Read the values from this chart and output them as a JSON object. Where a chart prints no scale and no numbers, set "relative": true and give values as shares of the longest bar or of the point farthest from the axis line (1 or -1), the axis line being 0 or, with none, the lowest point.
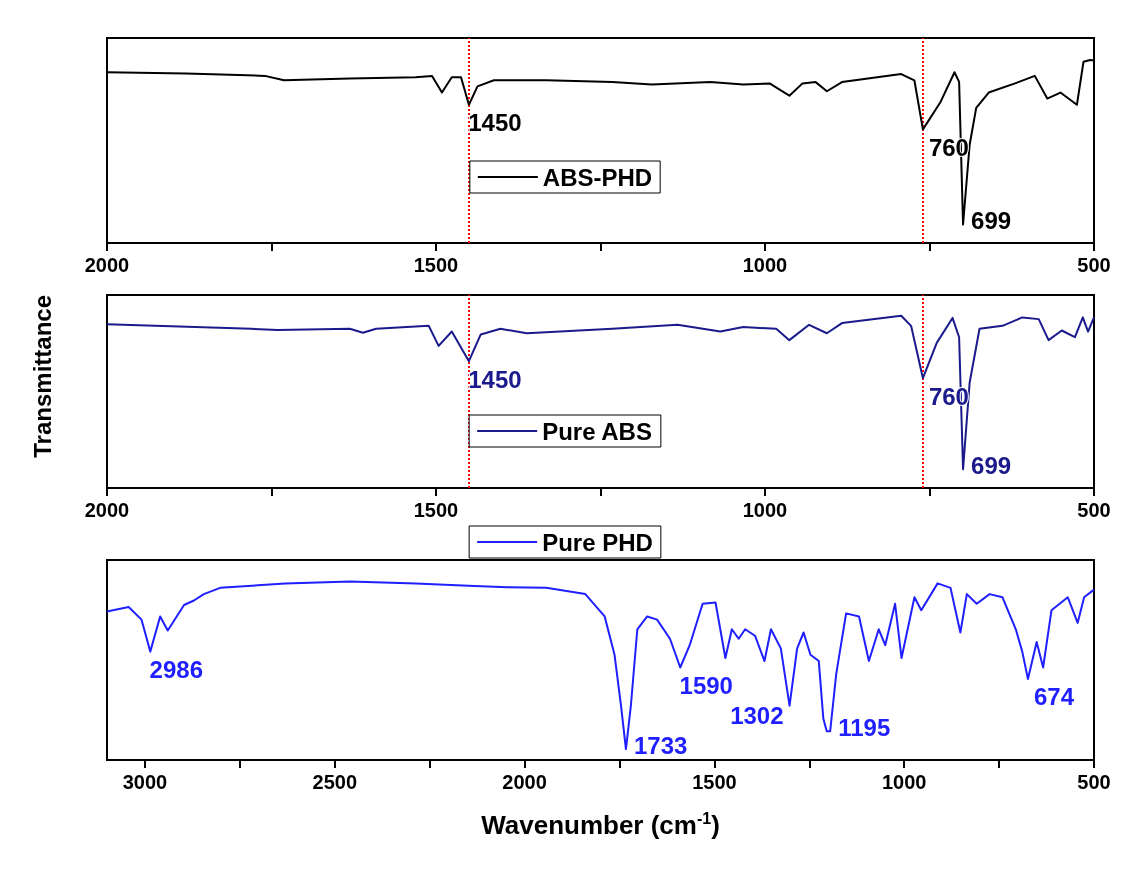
{
  "chart_data": [
    {
      "type": "line",
      "relative": true,
      "marker": "none",
      "line_style": "solid",
      "grid": false,
      "legend": "bottom",
      "tick_labels": "x",
      "xlim": [
        2000,
        500
      ],
      "xticks": [
        2000,
        {
          "value": 1750,
          "label": null
        },
        1500,
        {
          "value": 1250,
          "label": null
        },
        1000,
        {
          "value": 750,
          "label": null
        },
        500
      ],
      "x": [
        2000,
        1880,
        1760,
        1731,
        1631,
        1531,
        1506,
        1491,
        1476,
        1462,
        1450,
        1437,
        1412,
        1332,
        1232,
        1172,
        1083,
        1033,
        993,
        963,
        943,
        923,
        906,
        883,
        793,
        773,
        760,
        733,
        712,
        705,
        699,
        689,
        679,
        660,
        620,
        590,
        571,
        551,
        526,
        516,
        506,
        500
      ],
      "series": [
        {
          "name": "ABS-PHD",
          "color": "#000000",
          "values": [
            0.933,
            0.926,
            0.913,
            0.889,
            0.899,
            0.906,
            0.913,
            0.822,
            0.906,
            0.906,
            0.755,
            0.856,
            0.889,
            0.889,
            0.879,
            0.866,
            0.879,
            0.866,
            0.872,
            0.805,
            0.872,
            0.879,
            0.829,
            0.879,
            0.923,
            0.889,
            0.621,
            0.772,
            0.933,
            0.88,
            0.101,
            0.537,
            0.738,
            0.822,
            0.872,
            0.913,
            0.789,
            0.822,
            0.755,
            0.99,
            1.0,
            0.997
          ]
        }
      ],
      "ref_lines": [
        {
          "axis": "x",
          "value": 1450,
          "color": "#ff0000",
          "line_style": "dotted"
        },
        {
          "axis": "x",
          "value": 760,
          "color": "#ff0000",
          "line_style": "dotted"
        }
      ],
      "annotations": [
        {
          "text": "1450",
          "x": 1450,
          "y": 0.755
        },
        {
          "text": "760",
          "x": 760,
          "y": 0.621
        },
        {
          "text": "699",
          "x": 699,
          "y": 0.101
        }
      ]
    },
    {
      "type": "line",
      "relative": true,
      "marker": "none",
      "line_style": "solid",
      "grid": false,
      "legend": "bottom",
      "tick_labels": "x",
      "ylabel": "Transmittance",
      "xlim": [
        2000,
        500
      ],
      "xticks": [
        2000,
        {
          "value": 1750,
          "label": null
        },
        1500,
        {
          "value": 1250,
          "label": null
        },
        1000,
        {
          "value": 750,
          "label": null
        },
        500
      ],
      "x": [
        2000,
        1781,
        1741,
        1631,
        1611,
        1591,
        1511,
        1496,
        1476,
        1450,
        1432,
        1402,
        1362,
        1232,
        1133,
        1068,
        1033,
        983,
        963,
        933,
        906,
        883,
        793,
        778,
        760,
        739,
        715,
        705,
        699,
        689,
        674,
        639,
        609,
        584,
        569,
        549,
        529,
        517,
        509,
        500
      ],
      "series": [
        {
          "name": "Pure ABS",
          "color": "#1a1a8c",
          "values": [
            0.95,
            0.924,
            0.917,
            0.924,
            0.901,
            0.924,
            0.941,
            0.825,
            0.908,
            0.736,
            0.891,
            0.924,
            0.898,
            0.924,
            0.947,
            0.908,
            0.934,
            0.924,
            0.858,
            0.947,
            0.898,
            0.957,
            1.0,
            0.941,
            0.637,
            0.842,
            0.987,
            0.875,
            0.109,
            0.611,
            0.924,
            0.941,
            0.99,
            0.98,
            0.858,
            0.914,
            0.875,
            0.99,
            0.908,
            0.99
          ]
        }
      ],
      "ref_lines": [
        {
          "axis": "x",
          "value": 1450,
          "color": "#ff0000",
          "line_style": "dotted"
        },
        {
          "axis": "x",
          "value": 760,
          "color": "#ff0000",
          "line_style": "dotted"
        }
      ],
      "annotations": [
        {
          "text": "1450",
          "x": 1450,
          "y": 0.736
        },
        {
          "text": "760",
          "x": 760,
          "y": 0.637
        },
        {
          "text": "699",
          "x": 699,
          "y": 0.109
        }
      ]
    },
    {
      "type": "line",
      "relative": true,
      "marker": "none",
      "line_style": "solid",
      "grid": false,
      "legend": "top",
      "tick_labels": "x",
      "xlabel": "Wavenumber (cm$^{-1}$)",
      "xlim": [
        3100,
        500
      ],
      "xticks": [
        3000,
        {
          "value": 2750,
          "label": null
        },
        2500,
        {
          "value": 2250,
          "label": null
        },
        2000,
        {
          "value": 1750,
          "label": null
        },
        1500,
        {
          "value": 1250,
          "label": null
        },
        1000,
        {
          "value": 750,
          "label": null
        },
        500
      ],
      "x": [
        3100,
        3043,
        3009,
        2986,
        2960,
        2940,
        2897,
        2871,
        2845,
        2802,
        2631,
        2459,
        2287,
        2132,
        2046,
        1943,
        1840,
        1789,
        1763,
        1746,
        1733,
        1720,
        1703,
        1677,
        1651,
        1617,
        1590,
        1565,
        1531,
        1497,
        1471,
        1454,
        1436,
        1419,
        1393,
        1368,
        1351,
        1325,
        1302,
        1282,
        1265,
        1247,
        1225,
        1213,
        1204,
        1195,
        1179,
        1153,
        1119,
        1093,
        1067,
        1050,
        1024,
        1007,
        973,
        955,
        912,
        878,
        852,
        835,
        809,
        775,
        741,
        706,
        689,
        674,
        651,
        634,
        612,
        569,
        543,
        526,
        500
      ],
      "series": [
        {
          "name": "Pure PHD",
          "color": "#1f1fff",
          "values": [
            0.832,
            0.857,
            0.786,
            0.607,
            0.804,
            0.725,
            0.868,
            0.893,
            0.929,
            0.964,
            0.989,
            1.0,
            0.989,
            0.975,
            0.968,
            0.964,
            0.929,
            0.804,
            0.589,
            0.304,
            0.061,
            0.304,
            0.732,
            0.804,
            0.786,
            0.679,
            0.518,
            0.643,
            0.875,
            0.882,
            0.571,
            0.732,
            0.679,
            0.732,
            0.696,
            0.554,
            0.732,
            0.625,
            0.304,
            0.625,
            0.714,
            0.589,
            0.554,
            0.232,
            0.161,
            0.161,
            0.482,
            0.821,
            0.804,
            0.554,
            0.732,
            0.643,
            0.875,
            0.571,
            0.911,
            0.839,
            0.989,
            0.964,
            0.714,
            0.929,
            0.875,
            0.929,
            0.911,
            0.732,
            0.607,
            0.454,
            0.661,
            0.518,
            0.839,
            0.911,
            0.768,
            0.911,
            0.954
          ]
        }
      ],
      "annotations": [
        {
          "text": "2986",
          "x": 2986,
          "y": 0.607
        },
        {
          "text": "1733",
          "x": 1733,
          "y": 0.061
        },
        {
          "text": "1590",
          "x": 1590,
          "y": 0.518
        },
        {
          "text": "1302",
          "x": 1302,
          "y": 0.304
        },
        {
          "text": "1195",
          "x": 1195,
          "y": 0.161
        },
        {
          "text": "674",
          "x": 674,
          "y": 0.454
        }
      ]
    }
  ]
}
